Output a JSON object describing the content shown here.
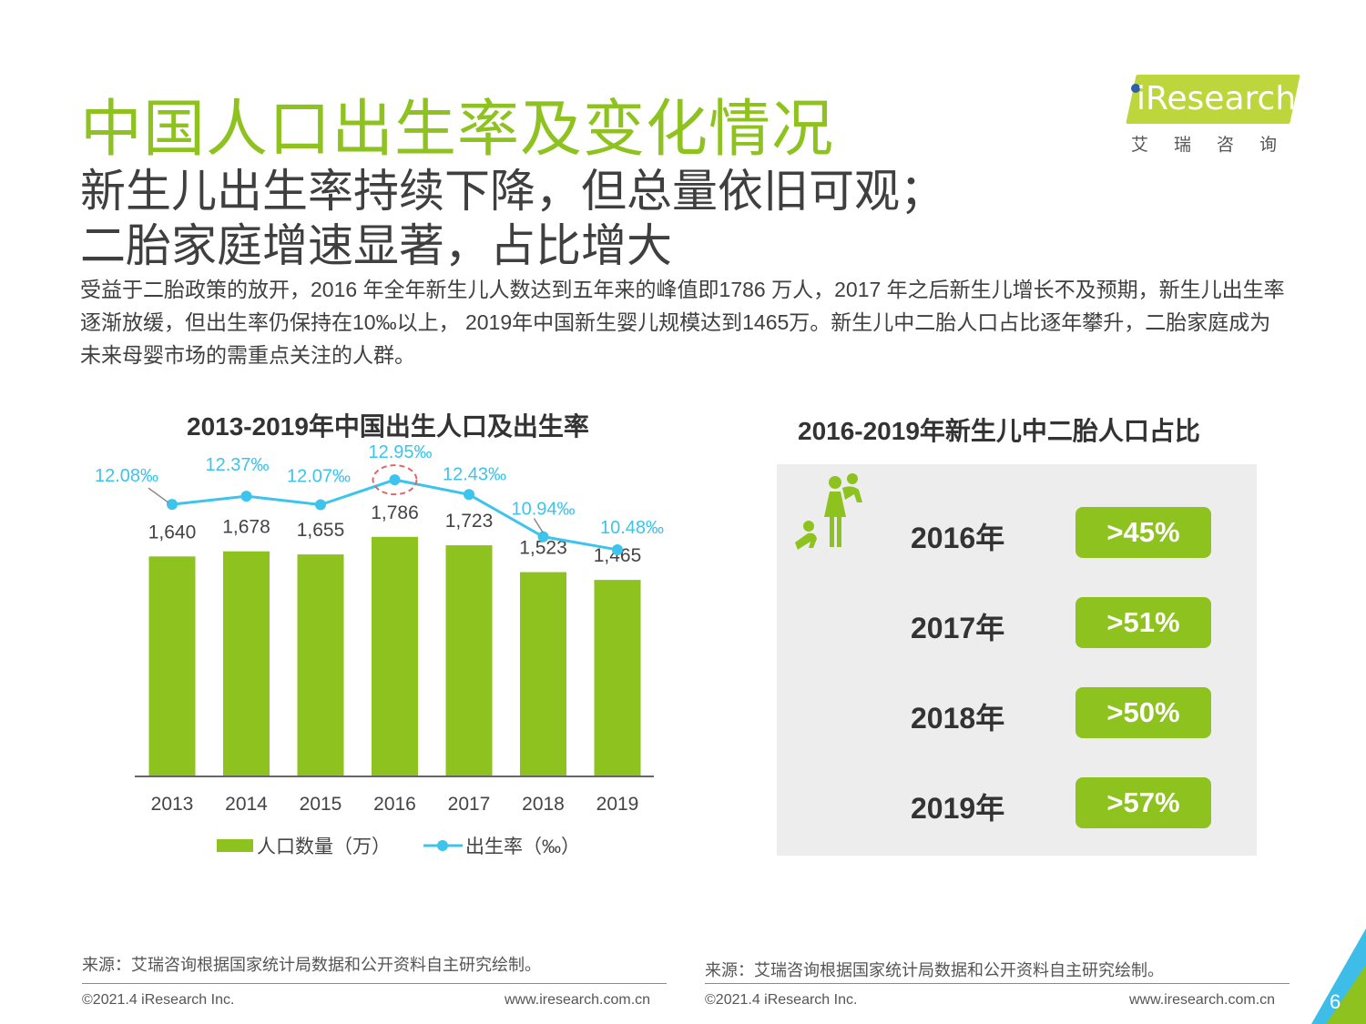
{
  "header": {
    "title": "中国人口出生率及变化情况",
    "subtitle_line1": "新生儿出生率持续下降，但总量依旧可观；",
    "subtitle_line2": "二胎家庭增速显著，占比增大",
    "description": "受益于二胎政策的放开，2016 年全年新生儿人数达到五年来的峰值即1786 万人，2017 年之后新生儿增长不及预期，新生儿出生率逐渐放缓，但出生率仍保持在10‰以上， 2019年中国新生婴儿规模达到1465万。新生儿中二胎人口占比逐年攀升，二胎家庭成为未来母婴市场的需重点关注的人群。"
  },
  "logo": {
    "text": "iResearch",
    "subtext": "艾瑞咨询"
  },
  "colors": {
    "accent_green": "#8dc21f",
    "line_blue": "#3dc4ec",
    "highlight_red": "#e06666",
    "panel_gray": "#ededed"
  },
  "chart_data": [
    {
      "type": "bar+line",
      "title": "2013-2019年中国出生人口及出生率",
      "categories": [
        "2013",
        "2014",
        "2015",
        "2016",
        "2017",
        "2018",
        "2019"
      ],
      "series": [
        {
          "name": "人口数量（万）",
          "type": "bar",
          "values": [
            1640,
            1678,
            1655,
            1786,
            1723,
            1523,
            1465
          ],
          "labels": [
            "1,640",
            "1,678",
            "1,655",
            "1,786",
            "1,723",
            "1,523",
            "1,465"
          ]
        },
        {
          "name": "出生率（‰）",
          "type": "line",
          "values": [
            12.08,
            12.37,
            12.07,
            12.95,
            12.43,
            10.94,
            10.48
          ],
          "labels": [
            "12.08‰",
            "12.37‰",
            "12.07‰",
            "12.95‰",
            "12.43‰",
            "10.94‰",
            "10.48‰"
          ]
        }
      ],
      "bar_ylim": [
        0,
        1900
      ],
      "line_ylim": [
        0,
        14
      ],
      "highlight_category": "2016",
      "legend_position": "bottom",
      "grid": false
    },
    {
      "type": "table",
      "title": "2016-2019年新生儿中二胎人口占比",
      "rows": [
        {
          "year": "2016年",
          "value": ">45%"
        },
        {
          "year": "2017年",
          "value": ">51%"
        },
        {
          "year": "2018年",
          "value": ">50%"
        },
        {
          "year": "2019年",
          "value": ">57%"
        }
      ]
    }
  ],
  "footer": {
    "source_left": "来源：艾瑞咨询根据国家统计局数据和公开资料自主研究绘制。",
    "source_right": "来源：艾瑞咨询根据国家统计局数据和公开资料自主研究绘制。",
    "copyright_left": "©2021.4 iResearch Inc.",
    "website_left": "www.iresearch.com.cn",
    "copyright_right": "©2021.4 iResearch Inc.",
    "website_right": "www.iresearch.com.cn",
    "page_number": "6"
  }
}
